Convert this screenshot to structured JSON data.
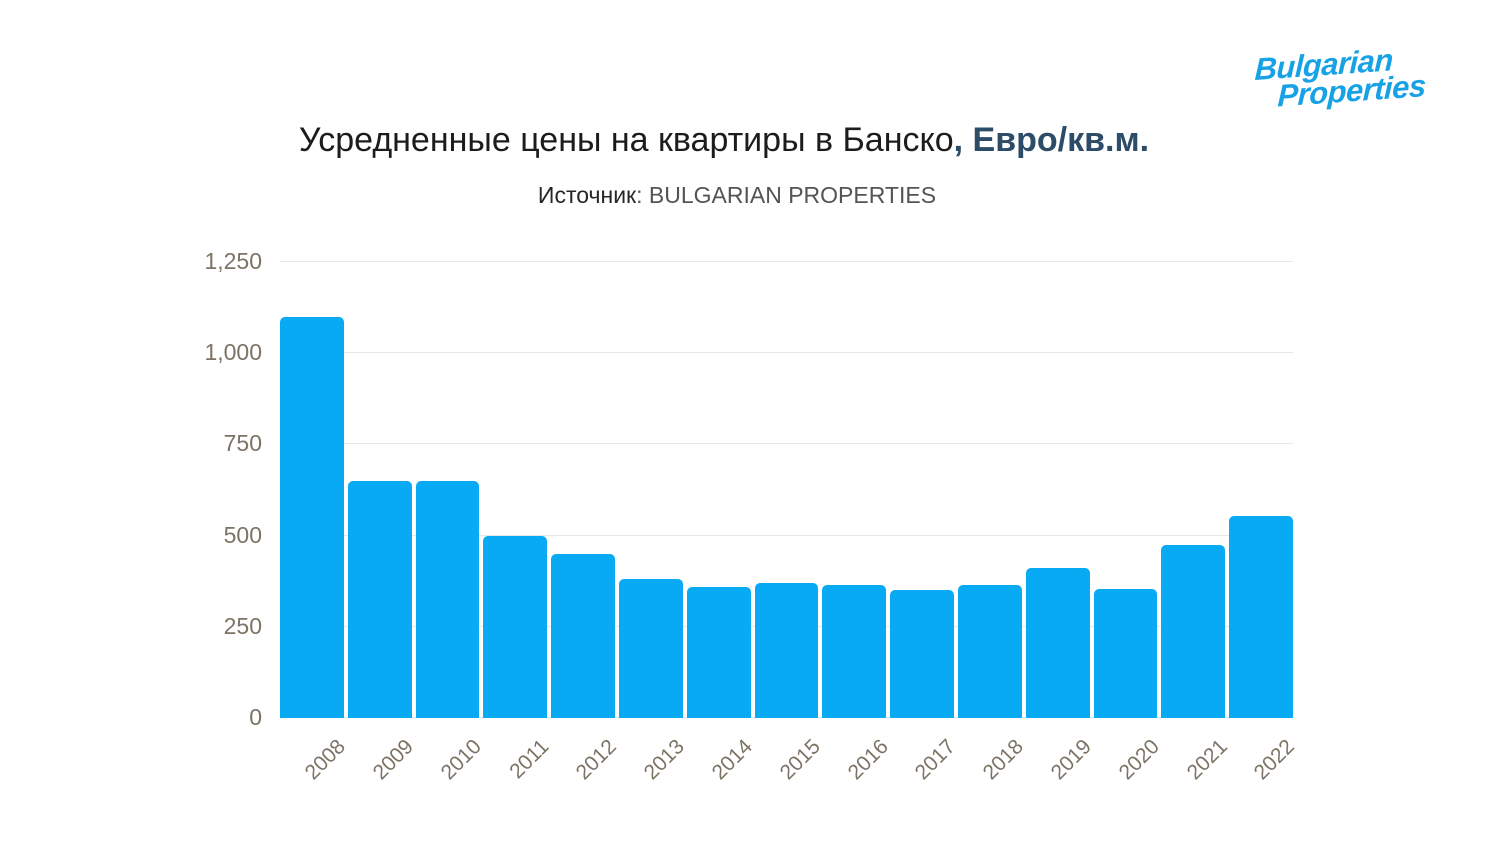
{
  "logo": {
    "line1": "Bulgarian",
    "line2": "Properties",
    "color": "#18a2e6"
  },
  "title": {
    "main": "Усредненные цены на квартиры в Банско",
    "accent": ", Евро/кв.м.",
    "accent_color": "#2d4c68"
  },
  "subtitle": {
    "label": "Источник",
    "value": ": BULGARIAN PROPERTIES"
  },
  "chart_data": {
    "type": "bar",
    "title": "Усредненные цены на квартиры в Банско, Евро/кв.м.",
    "source": "Источник: BULGARIAN PROPERTIES",
    "categories": [
      "2008",
      "2009",
      "2010",
      "2011",
      "2012",
      "2013",
      "2014",
      "2015",
      "2016",
      "2017",
      "2018",
      "2019",
      "2020",
      "2021",
      "2022"
    ],
    "values": [
      1100,
      650,
      650,
      500,
      450,
      380,
      360,
      370,
      365,
      350,
      365,
      410,
      355,
      475,
      555
    ],
    "xlabel": "",
    "ylabel": "",
    "ylim": [
      0,
      1250
    ],
    "yticks": [
      0,
      250,
      500,
      750,
      1000,
      1250
    ],
    "ytick_labels": [
      "0",
      "250",
      "500",
      "750",
      "1,000",
      "1,250"
    ],
    "grid": "horizontal",
    "legend": "none",
    "bar_color": "#08aaf3",
    "gridline_color": "#e8e8e8",
    "axis_label_color": "#7c7365"
  }
}
